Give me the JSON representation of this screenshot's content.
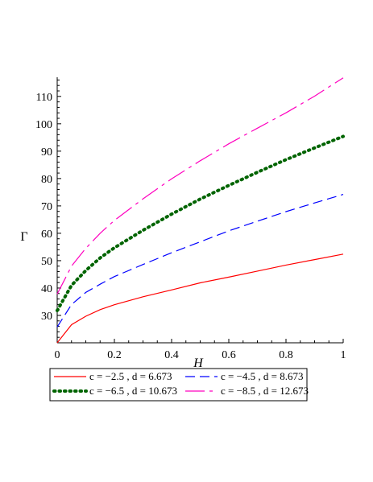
{
  "chart_data": {
    "type": "line",
    "xlabel": "H",
    "ylabel": "Γ",
    "xlim": [
      0,
      1
    ],
    "ylim": [
      20,
      117
    ],
    "xticks": [
      0,
      0.2,
      0.4,
      0.6,
      0.8,
      1
    ],
    "xtick_labels": [
      "0",
      "0.2",
      "0.4",
      "0.6",
      "0.8",
      "1"
    ],
    "yticks": [
      30,
      40,
      50,
      60,
      70,
      80,
      90,
      100,
      110
    ],
    "ytick_labels": [
      "30",
      "40",
      "50",
      "60",
      "70",
      "80",
      "90",
      "100",
      "110"
    ],
    "grid": false,
    "legend_position": "bottom",
    "x": [
      0,
      0.05,
      0.1,
      0.15,
      0.2,
      0.3,
      0.4,
      0.5,
      0.6,
      0.7,
      0.8,
      0.9,
      1.0
    ],
    "series": [
      {
        "name": "c = −2.5 , d = 6.673",
        "color": "#ff0000",
        "style": "solid",
        "values": [
          20.0,
          26.6,
          29.7,
          32.1,
          33.9,
          36.8,
          39.3,
          41.9,
          44.0,
          46.2,
          48.4,
          50.4,
          52.4
        ]
      },
      {
        "name": "c = −4.5 , d = 8.673",
        "color": "#0000ff",
        "style": "dash",
        "values": [
          25.8,
          34.0,
          38.4,
          41.4,
          44.2,
          48.6,
          52.9,
          56.9,
          60.9,
          64.4,
          67.9,
          71.1,
          74.2
        ]
      },
      {
        "name": "c = −6.5 , d = 10.673",
        "color": "#006400",
        "style": "dot",
        "values": [
          31.8,
          41.0,
          46.4,
          51.0,
          54.7,
          61.1,
          67.0,
          72.5,
          77.5,
          82.3,
          86.9,
          91.2,
          95.4
        ]
      },
      {
        "name": "c = −8.5 , d = 12.673",
        "color": "#ff00bf",
        "style": "longdash",
        "values": [
          37.8,
          48.0,
          54.5,
          60.0,
          64.7,
          72.6,
          79.9,
          86.5,
          92.7,
          98.4,
          104.0,
          110.1,
          116.8
        ]
      }
    ]
  }
}
